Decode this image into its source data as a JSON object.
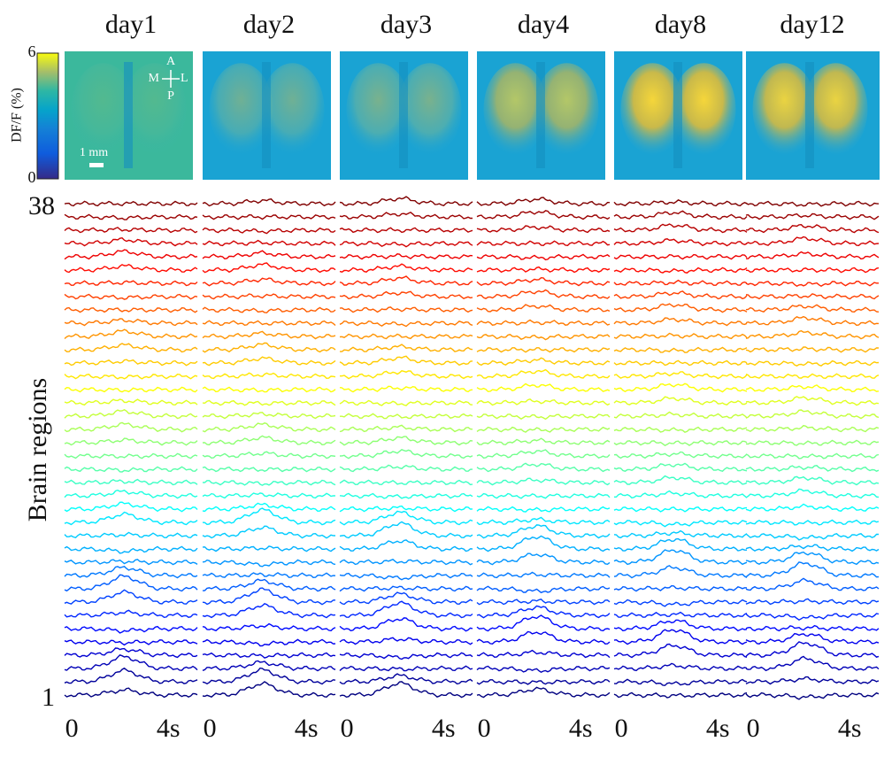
{
  "figure": {
    "panels": [
      {
        "title": "day1"
      },
      {
        "title": "day2"
      },
      {
        "title": "day3"
      },
      {
        "title": "day4"
      },
      {
        "title": "day8"
      },
      {
        "title": "day12"
      }
    ],
    "colorbar": {
      "label": "DF/F (%)",
      "lim": [
        0,
        6
      ],
      "ticks": [
        0,
        6
      ]
    },
    "orientation": {
      "a": "A",
      "m": "M",
      "l": "L",
      "p": "P"
    },
    "scale_bar": "1 mm",
    "y_axis": {
      "label": "Brain regions",
      "lim": [
        1,
        38
      ],
      "ticks": [
        1,
        38
      ]
    },
    "x_axis": {
      "lim": [
        -0.3,
        5.2
      ],
      "ticks": [
        0,
        {
          "value": 4,
          "label": "4s"
        }
      ]
    }
  }
}
